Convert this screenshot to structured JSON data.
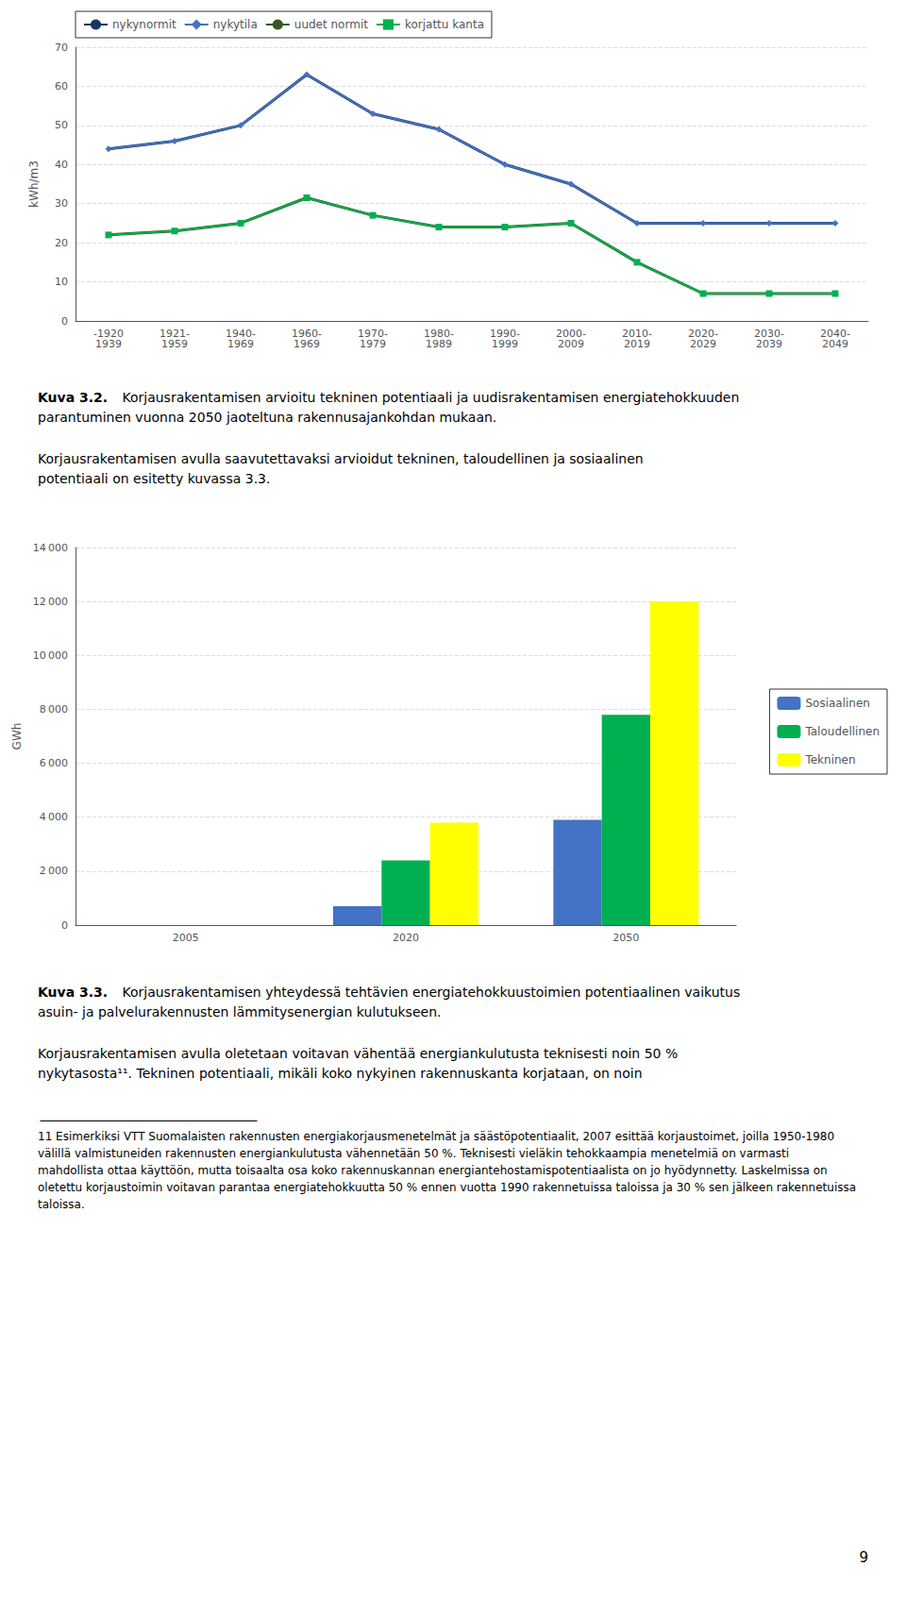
{
  "chart_data": [
    {
      "type": "line",
      "categories": [
        "-1920\n1939",
        "1921-\n1959",
        "1940-\n1969",
        "1960-\n1969",
        "1970-\n1979",
        "1980-\n1989",
        "1990-\n1999",
        "2000-\n2009",
        "2010-\n2019",
        "2020-\n2029",
        "2030-\n2039",
        "2040-\n2049"
      ],
      "ylabel": "kWh/m3",
      "ylim": [
        0,
        70
      ],
      "yticks": [
        0,
        10,
        20,
        30,
        40,
        50,
        60,
        70
      ],
      "grid": true,
      "legend": "upper left",
      "series": [
        {
          "name": "nykynormit",
          "color": "#17375E",
          "marker": "none",
          "values": [
            44,
            46,
            50,
            63,
            53,
            49,
            40,
            35,
            25,
            25,
            25,
            25
          ]
        },
        {
          "name": "nykytila",
          "color": "#4472C4",
          "marker": "diamond",
          "values": [
            44,
            46,
            50,
            63,
            53,
            49,
            40,
            35,
            25,
            25,
            25,
            25
          ]
        },
        {
          "name": "uudet normit",
          "color": "#375623",
          "marker": "none",
          "values": [
            22,
            23,
            25,
            31.5,
            27,
            24,
            24,
            25,
            15,
            7,
            7,
            7
          ]
        },
        {
          "name": "korjattu kanta",
          "color": "#00B050",
          "marker": "square",
          "values": [
            22,
            23,
            25,
            31.5,
            27,
            24,
            24,
            25,
            15,
            7,
            7,
            7
          ]
        }
      ],
      "annotations": [
        "Kuva 3.2. Korjausrakentamisen arvioitu tekninen potentiaali ja uudisrakentamisen energiatehokkuuden parantuminen vuonna 2050 jaoteltuna rakennusajankohdan mukaan.",
        "Korjausrakentamisen avulla saavutettavaksi arvioidut tekninen, taloudellinen ja sosiaalinen potentiaali on esitetty kuvassa 3.3."
      ]
    },
    {
      "type": "bar",
      "categories": [
        "2005",
        "2020",
        "2050"
      ],
      "ylabel": "GWh",
      "ylim": [
        0,
        14000
      ],
      "yticks": [
        0,
        {
          "value": 2000,
          "label": "2 000"
        },
        {
          "value": 4000,
          "label": "4 000"
        },
        {
          "value": 6000,
          "label": "6 000"
        },
        {
          "value": 8000,
          "label": "8 000"
        },
        {
          "value": 10000,
          "label": "10 000"
        },
        {
          "value": 12000,
          "label": "12 000"
        },
        {
          "value": 14000,
          "label": "14 000"
        }
      ],
      "grid": true,
      "legend": "right",
      "series": [
        {
          "name": "Sosiaalinen",
          "color": "#4472C4",
          "values": [
            0,
            700,
            3900
          ]
        },
        {
          "name": "Taloudellinen",
          "color": "#00B050",
          "values": [
            0,
            2400,
            7800
          ]
        },
        {
          "name": "Tekninen",
          "color": "#FFFF00",
          "values": [
            0,
            3800,
            12000
          ]
        }
      ],
      "annotations": [
        "Kuva 3.3. Korjausrakentamisen yhteydessä tehtävien energiatehokkuustoimien potentiaalinen vaikutus asuin- ja palvelurakennusten lämmitysenergian kulutukseen.",
        "Korjausrakentamisen avulla oletetaan voitavan vähentää energiankulutusta teknisesti noin 50 % nykytasosta¹¹. Tekninen potentiaali, mikäli koko nykyinen rakennuskanta korjataan, on noin",
        "11 Esimerkiksi VTT Suomalaisten rakennusten energiakorjausmenetelmät ja säästöpotentiaalit, 2007 esittää korjaustoimet, joilla 1950-1980 välillä valmistuneiden rakennusten energiankulutusta vähennetään 50 %. Teknisesti vieläkin tehokkaampia menetelmiä on varmasti mahdollista ottaa käyttöön, mutta toisaalta osa koko rakennuskannan energiantehostamispotentiaalista on jo hyödynnetty. Laskelmissa on oletettu korjaustoimin voitavan parantaa energiatehokkuutta 50 % ennen vuotta 1990 rakennetuissa taloissa ja 30 % sen jälkeen rakennetuissa taloissa.",
        "9"
      ]
    }
  ]
}
